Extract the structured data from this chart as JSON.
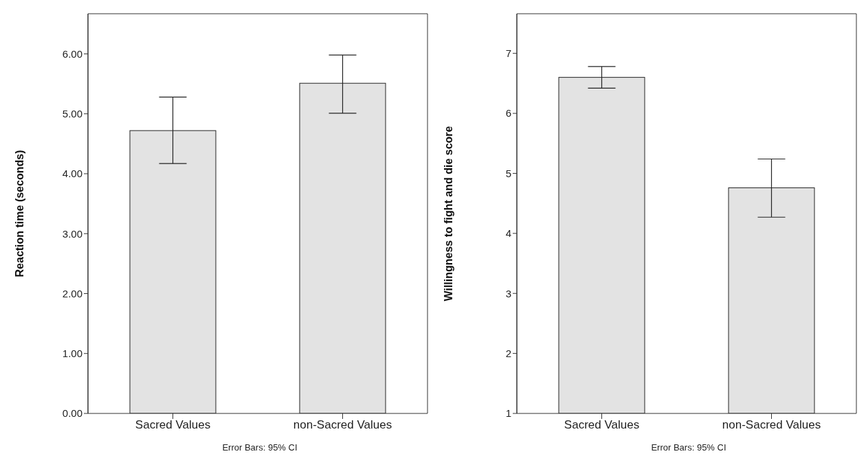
{
  "chart_data": [
    {
      "type": "bar",
      "categories": [
        "Sacred Values",
        "non-Sacred Values"
      ],
      "values": [
        4.72,
        5.51
      ],
      "errors": [
        [
          4.17,
          5.28
        ],
        [
          5.01,
          5.98
        ]
      ],
      "color": "#e3e3e3",
      "ylabel": "Reaction time (seconds)",
      "ylim": [
        0,
        6.67
      ],
      "yticks": [
        {
          "value": 0,
          "label": "0.00"
        },
        {
          "value": 1,
          "label": "1.00"
        },
        {
          "value": 2,
          "label": "2.00"
        },
        {
          "value": 3,
          "label": "3.00"
        },
        {
          "value": 4,
          "label": "4.00"
        },
        {
          "value": 5,
          "label": "5.00"
        },
        {
          "value": 6,
          "label": "6.00"
        }
      ],
      "grid": false,
      "legend": false,
      "annotations": [
        "Error Bars: 95% CI"
      ]
    },
    {
      "type": "bar",
      "categories": [
        "Sacred Values",
        "non-Sacred Values"
      ],
      "values": [
        6.6,
        4.76
      ],
      "errors": [
        [
          6.42,
          6.78
        ],
        [
          4.27,
          5.24
        ]
      ],
      "color": "#e3e3e3",
      "ylabel": "Willingness to fight and die score",
      "ylim": [
        1,
        7.66
      ],
      "yticks": [
        1,
        2,
        3,
        4,
        5,
        6,
        7
      ],
      "grid": false,
      "legend": false,
      "annotations": [
        "Error Bars: 95% CI"
      ]
    }
  ]
}
